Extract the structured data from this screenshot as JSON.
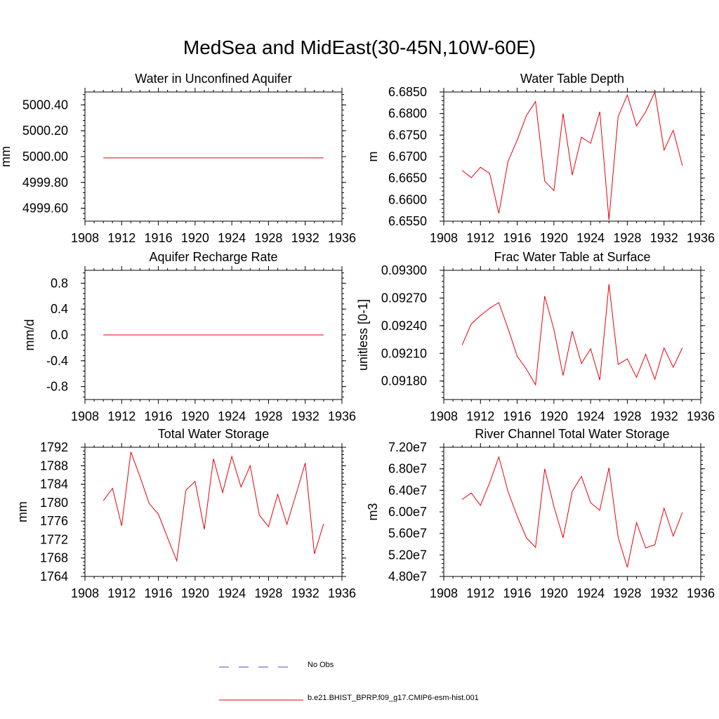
{
  "title": "MedSea and MidEast(30-45N,10W-60E)",
  "colors": {
    "model": "#e8000b",
    "obs": "#4a4ad0",
    "axis": "#000000"
  },
  "legend": [
    {
      "label": "No Obs",
      "style": "dashed",
      "color": "#4a4ad0"
    },
    {
      "label": "b.e21.BHIST_BPRP.f09_g17.CMIP6-esm-hist.001",
      "style": "solid",
      "color": "#e8000b"
    }
  ],
  "chart_data": [
    {
      "type": "line",
      "title": "Water in Unconfined Aquifer",
      "xlabel": "",
      "ylabel": "mm",
      "xlim": [
        1908,
        1936
      ],
      "ylim": [
        4999.5,
        5000.5
      ],
      "xticks": [
        1908,
        1912,
        1916,
        1920,
        1924,
        1928,
        1932,
        1936
      ],
      "yticks": [
        4999.6,
        4999.8,
        5000.0,
        5000.2,
        5000.4
      ],
      "yticklabels": [
        "4999.60",
        "4999.80",
        "5000.00",
        "5000.20",
        "5000.40"
      ],
      "x": [
        1910,
        1911,
        1912,
        1913,
        1914,
        1915,
        1916,
        1917,
        1918,
        1919,
        1920,
        1921,
        1922,
        1923,
        1924,
        1925,
        1926,
        1927,
        1928,
        1929,
        1930,
        1931,
        1932,
        1933,
        1934
      ],
      "series": [
        {
          "values": [
            4999.99,
            4999.99,
            4999.99,
            4999.99,
            4999.99,
            4999.99,
            4999.99,
            4999.99,
            4999.99,
            4999.99,
            4999.99,
            4999.99,
            4999.99,
            4999.99,
            4999.99,
            4999.99,
            4999.99,
            4999.99,
            4999.99,
            4999.99,
            4999.99,
            4999.99,
            4999.99,
            4999.99,
            4999.99
          ]
        }
      ]
    },
    {
      "type": "line",
      "title": "Water Table Depth",
      "xlabel": "",
      "ylabel": "m",
      "xlim": [
        1908,
        1936
      ],
      "ylim": [
        6.655,
        6.685
      ],
      "xticks": [
        1908,
        1912,
        1916,
        1920,
        1924,
        1928,
        1932,
        1936
      ],
      "yticks": [
        6.655,
        6.66,
        6.665,
        6.67,
        6.675,
        6.68,
        6.685
      ],
      "yticklabels": [
        "6.6550",
        "6.6600",
        "6.6650",
        "6.6700",
        "6.6750",
        "6.6800",
        "6.6850"
      ],
      "x": [
        1910,
        1911,
        1912,
        1913,
        1914,
        1915,
        1916,
        1917,
        1918,
        1919,
        1920,
        1921,
        1922,
        1923,
        1924,
        1925,
        1926,
        1927,
        1928,
        1929,
        1930,
        1931,
        1932,
        1933,
        1934
      ],
      "series": [
        {
          "values": [
            6.6668,
            6.6651,
            6.6675,
            6.6661,
            6.6568,
            6.6689,
            6.6738,
            6.6795,
            6.6828,
            6.6643,
            6.6621,
            6.68,
            6.6657,
            6.6745,
            6.6731,
            6.6804,
            6.6553,
            6.6793,
            6.6843,
            6.6771,
            6.6804,
            6.685,
            6.6715,
            6.6761,
            6.6679
          ]
        }
      ]
    },
    {
      "type": "line",
      "title": "Aquifer Recharge Rate",
      "xlabel": "",
      "ylabel": "mm/d",
      "xlim": [
        1908,
        1936
      ],
      "ylim": [
        -1.0,
        1.0
      ],
      "xticks": [
        1908,
        1912,
        1916,
        1920,
        1924,
        1928,
        1932,
        1936
      ],
      "yticks": [
        -0.8,
        -0.4,
        0.0,
        0.4,
        0.8
      ],
      "yticklabels": [
        "-0.8",
        "-0.4",
        "0.0",
        "0.4",
        "0.8"
      ],
      "x": [
        1910,
        1911,
        1912,
        1913,
        1914,
        1915,
        1916,
        1917,
        1918,
        1919,
        1920,
        1921,
        1922,
        1923,
        1924,
        1925,
        1926,
        1927,
        1928,
        1929,
        1930,
        1931,
        1932,
        1933,
        1934
      ],
      "series": [
        {
          "values": [
            0,
            0,
            0,
            0,
            0,
            0,
            0,
            0,
            0,
            0,
            0,
            0,
            0,
            0,
            0,
            0,
            0,
            0,
            0,
            0,
            0,
            0,
            0,
            0,
            0
          ]
        }
      ]
    },
    {
      "type": "line",
      "title": "Frac Water Table at Surface",
      "xlabel": "",
      "ylabel": "unitless [0-1]",
      "xlim": [
        1908,
        1936
      ],
      "ylim": [
        0.0916,
        0.093
      ],
      "xticks": [
        1908,
        1912,
        1916,
        1920,
        1924,
        1928,
        1932,
        1936
      ],
      "yticks": [
        0.0918,
        0.0921,
        0.0924,
        0.0927,
        0.093
      ],
      "yticklabels": [
        "0.09180",
        "0.09210",
        "0.09240",
        "0.09270",
        "0.09300"
      ],
      "x": [
        1910,
        1911,
        1912,
        1913,
        1914,
        1915,
        1916,
        1917,
        1918,
        1919,
        1920,
        1921,
        1922,
        1923,
        1924,
        1925,
        1926,
        1927,
        1928,
        1929,
        1930,
        1931,
        1932,
        1933,
        1934
      ],
      "series": [
        {
          "values": [
            0.09219,
            0.09242,
            0.09251,
            0.09259,
            0.09265,
            0.09237,
            0.09207,
            0.09193,
            0.09176,
            0.09272,
            0.09236,
            0.09186,
            0.09234,
            0.09199,
            0.09215,
            0.09181,
            0.09285,
            0.09198,
            0.09204,
            0.09184,
            0.09209,
            0.09182,
            0.09216,
            0.09195,
            0.09216
          ]
        }
      ]
    },
    {
      "type": "line",
      "title": "Total Water Storage",
      "xlabel": "",
      "ylabel": "mm",
      "xlim": [
        1908,
        1936
      ],
      "ylim": [
        1764,
        1792
      ],
      "xticks": [
        1908,
        1912,
        1916,
        1920,
        1924,
        1928,
        1932,
        1936
      ],
      "yticks": [
        1764,
        1768,
        1772,
        1776,
        1780,
        1784,
        1788,
        1792
      ],
      "yticklabels": [
        "1764",
        "1768",
        "1772",
        "1776",
        "1780",
        "1784",
        "1788",
        "1792"
      ],
      "x": [
        1910,
        1911,
        1912,
        1913,
        1914,
        1915,
        1916,
        1917,
        1918,
        1919,
        1920,
        1921,
        1922,
        1923,
        1924,
        1925,
        1926,
        1927,
        1928,
        1929,
        1930,
        1931,
        1932,
        1933,
        1934
      ],
      "series": [
        {
          "values": [
            1780.4,
            1783.1,
            1775.0,
            1791.0,
            1785.6,
            1779.8,
            1777.5,
            1772.4,
            1767.4,
            1782.7,
            1784.6,
            1774.2,
            1789.5,
            1782.2,
            1790.0,
            1783.4,
            1788.0,
            1777.3,
            1774.8,
            1781.8,
            1775.3,
            1781.8,
            1788.6,
            1768.9,
            1775.4
          ]
        }
      ]
    },
    {
      "type": "line",
      "title": "River Channel Total Water Storage",
      "xlabel": "",
      "ylabel": "m3",
      "xlim": [
        1908,
        1936
      ],
      "ylim": [
        48000000,
        72000000
      ],
      "xticks": [
        1908,
        1912,
        1916,
        1920,
        1924,
        1928,
        1932,
        1936
      ],
      "yticks": [
        48000000,
        52000000,
        56000000,
        60000000,
        64000000,
        68000000,
        72000000
      ],
      "yticklabels": [
        "4.80e7",
        "5.20e7",
        "5.60e7",
        "6.00e7",
        "6.40e7",
        "6.80e7",
        "7.20e7"
      ],
      "x": [
        1910,
        1911,
        1912,
        1913,
        1914,
        1915,
        1916,
        1917,
        1918,
        1919,
        1920,
        1921,
        1922,
        1923,
        1924,
        1925,
        1926,
        1927,
        1928,
        1929,
        1930,
        1931,
        1932,
        1933,
        1934
      ],
      "series": [
        {
          "values": [
            62300000,
            63500000,
            61200000,
            65400000,
            70200000,
            63800000,
            59200000,
            55200000,
            53400000,
            68000000,
            61000000,
            55200000,
            63800000,
            66600000,
            61700000,
            60300000,
            68200000,
            55300000,
            49700000,
            58000000,
            53300000,
            53900000,
            60700000,
            55500000,
            59900000
          ]
        }
      ]
    }
  ]
}
